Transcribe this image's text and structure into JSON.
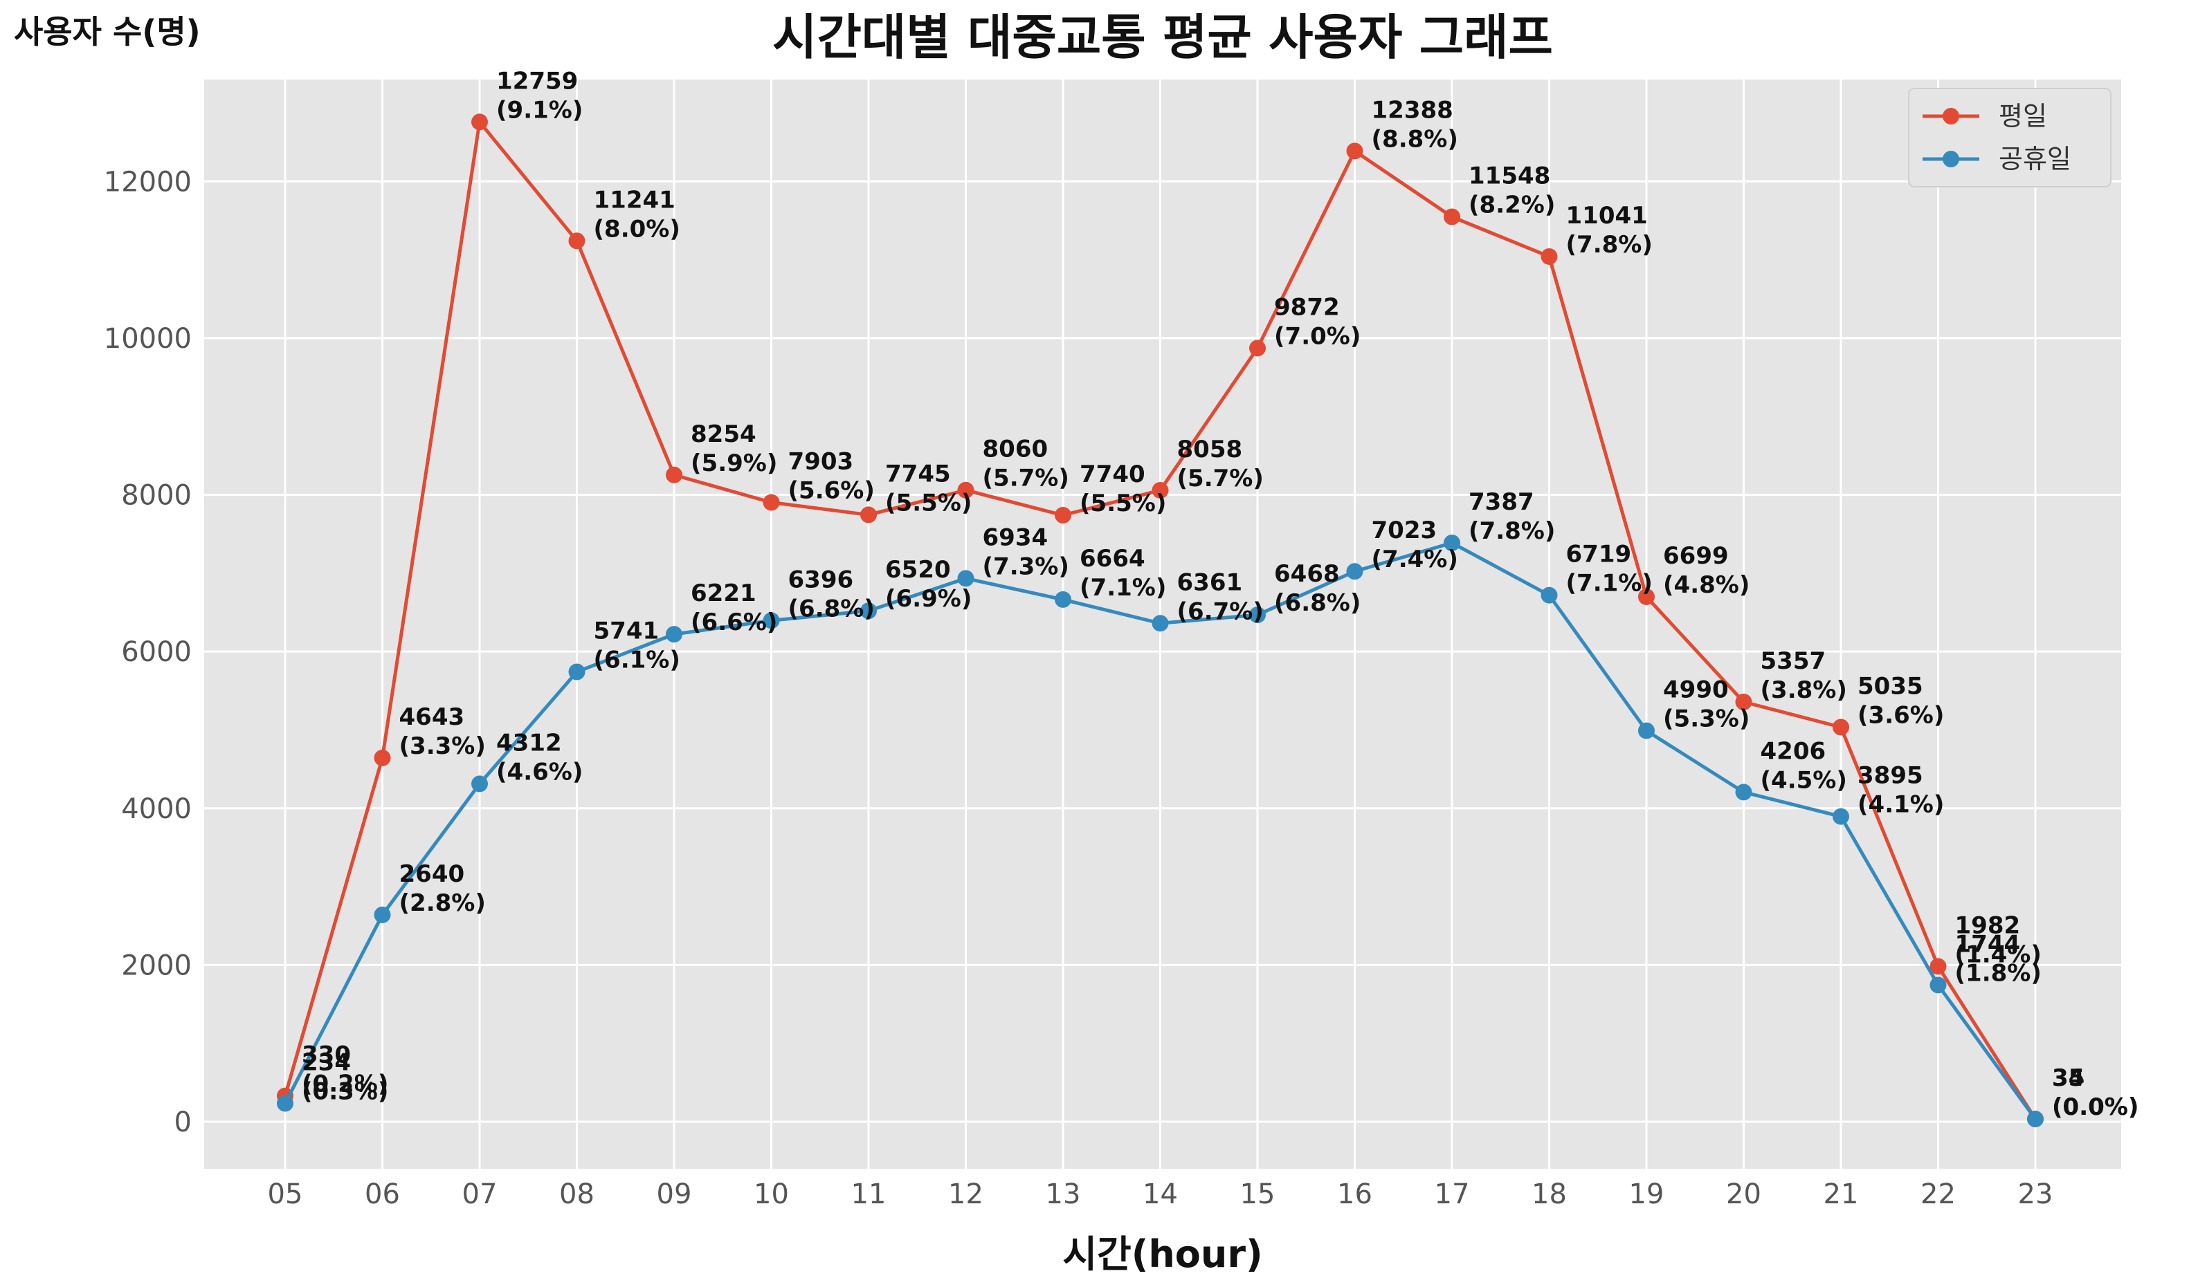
{
  "chart_data": {
    "type": "line",
    "title": "시간대별 대중교통 평균 사용자 그래프",
    "xlabel": "시간(hour)",
    "ylabel": "사용자 수(명)",
    "categories": [
      "05",
      "06",
      "07",
      "08",
      "09",
      "10",
      "11",
      "12",
      "13",
      "14",
      "15",
      "16",
      "17",
      "18",
      "19",
      "20",
      "21",
      "22",
      "23"
    ],
    "ylim": [
      -600,
      13300
    ],
    "yticks": [
      0,
      2000,
      4000,
      6000,
      8000,
      10000,
      12000
    ],
    "grid": true,
    "legend_position": "top-right",
    "series": [
      {
        "name": "평일",
        "color": "#E24A33",
        "values": [
          330,
          4643,
          12759,
          11241,
          8254,
          7903,
          7745,
          8060,
          7740,
          8058,
          9872,
          12388,
          11548,
          11041,
          6699,
          5357,
          5035,
          1982,
          35
        ],
        "labels": [
          "330\n(0.2%)",
          "4643\n(3.3%)",
          "12759\n(9.1%)",
          "11241\n(8.0%)",
          "8254\n(5.9%)",
          "7903\n(5.6%)",
          "7745\n(5.5%)",
          "8060\n(5.7%)",
          "7740\n(5.5%)",
          "8058\n(5.7%)",
          "9872\n(7.0%)",
          "12388\n(8.8%)",
          "11548\n(8.2%)",
          "11041\n(7.8%)",
          "6699\n(4.8%)",
          "5357\n(3.8%)",
          "5035\n(3.6%)",
          "1982\n(1.4%)",
          "35\n(0.0%)"
        ]
      },
      {
        "name": "공휴일",
        "color": "#348ABD",
        "values": [
          234,
          2640,
          4312,
          5741,
          6221,
          6396,
          6520,
          6934,
          6664,
          6361,
          6468,
          7023,
          7387,
          6719,
          4990,
          4206,
          3895,
          1744,
          34
        ],
        "labels": [
          "234\n(0.3%)",
          "2640\n(2.8%)",
          "4312\n(4.6%)",
          "5741\n(6.1%)",
          "6221\n(6.6%)",
          "6396\n(6.8%)",
          "6520\n(6.9%)",
          "6934\n(7.3%)",
          "6664\n(7.1%)",
          "6361\n(6.7%)",
          "6468\n(6.8%)",
          "7023\n(7.4%)",
          "7387\n(7.8%)",
          "6719\n(7.1%)",
          "4990\n(5.3%)",
          "4206\n(4.5%)",
          "3895\n(4.1%)",
          "1744\n(1.8%)",
          "34\n(0.0%)"
        ]
      }
    ]
  }
}
